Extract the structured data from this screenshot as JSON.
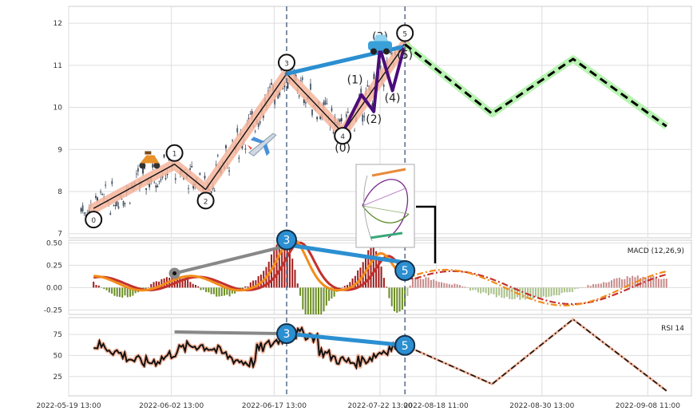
{
  "chart_data": {
    "type": "candlestick-with-indicators",
    "x_tick_labels": [
      "2022-05-19 13:00",
      "2022-06-02 13:00",
      "2022-06-17 13:00",
      "2022-07-22 13:00",
      "2022-08-18 11:00",
      "2022-08-30 13:00",
      "2022-09-08 11:00"
    ],
    "price": {
      "y_ticks": [
        "7",
        "8",
        "9",
        "10",
        "11",
        "12"
      ],
      "ylim": [
        6.9,
        12.4
      ],
      "bar_range": [
        0.02,
        0.54
      ],
      "wave_path": [
        [
          0.04,
          7.6
        ],
        [
          0.17,
          8.65
        ],
        [
          0.22,
          8.05
        ],
        [
          0.35,
          10.8
        ],
        [
          0.44,
          9.4
        ],
        [
          0.54,
          11.5
        ]
      ],
      "pivot_labels": [
        "0",
        "1",
        "2",
        "3",
        "4",
        "5"
      ],
      "sub_path": [
        [
          0.44,
          9.4
        ],
        [
          0.47,
          10.3
        ],
        [
          0.49,
          9.9
        ],
        [
          0.5,
          11.4
        ],
        [
          0.52,
          10.4
        ],
        [
          0.54,
          11.5
        ]
      ],
      "sub_labels": [
        "(0)",
        "(1)",
        "(2)",
        "(3)",
        "(4)",
        "(5)"
      ],
      "projection": [
        [
          0.54,
          11.5
        ],
        [
          0.68,
          9.85
        ],
        [
          0.81,
          11.15
        ],
        [
          0.96,
          9.55
        ]
      ],
      "trend_line": [
        [
          0.35,
          10.8
        ],
        [
          0.54,
          11.45
        ]
      ],
      "shading_color": "#f5b49b",
      "trend_color": "#2b8fd1",
      "sub_color": "#4b0c7a",
      "projection_glow": "#a8f0a0",
      "icons": [
        "scooter-icon",
        "airplane-icon",
        "car-icon"
      ],
      "inset": "harmonic-pattern-thumbnail"
    },
    "macd": {
      "label": "MACD (12,26,9)",
      "y_ticks": [
        "-0.25",
        "0.00",
        "0.25",
        "0.50"
      ],
      "ylim": [
        -0.3,
        0.53
      ],
      "markers": [
        "3",
        "5"
      ],
      "divergence_line": [
        [
          0.35,
          0.48
        ],
        [
          0.54,
          0.28
        ]
      ],
      "grey_line": [
        [
          0.17,
          0.16
        ],
        [
          0.34,
          0.45
        ]
      ],
      "macd_color": "#f28c1a",
      "signal_color": "#c4302b",
      "pos_color": "#a11c1c",
      "neg_color": "#6b8e23"
    },
    "rsi": {
      "label": "RSI 14",
      "y_ticks": [
        "25",
        "50",
        "75"
      ],
      "ylim": [
        2,
        95
      ],
      "markers": [
        "3",
        "5"
      ],
      "divergence_line": [
        [
          0.35,
          76
        ],
        [
          0.54,
          62
        ]
      ],
      "grey_line": [
        [
          0.17,
          78
        ],
        [
          0.34,
          76
        ]
      ],
      "projection": [
        [
          0.54,
          62
        ],
        [
          0.68,
          16
        ],
        [
          0.81,
          93
        ],
        [
          0.96,
          8
        ]
      ]
    }
  }
}
